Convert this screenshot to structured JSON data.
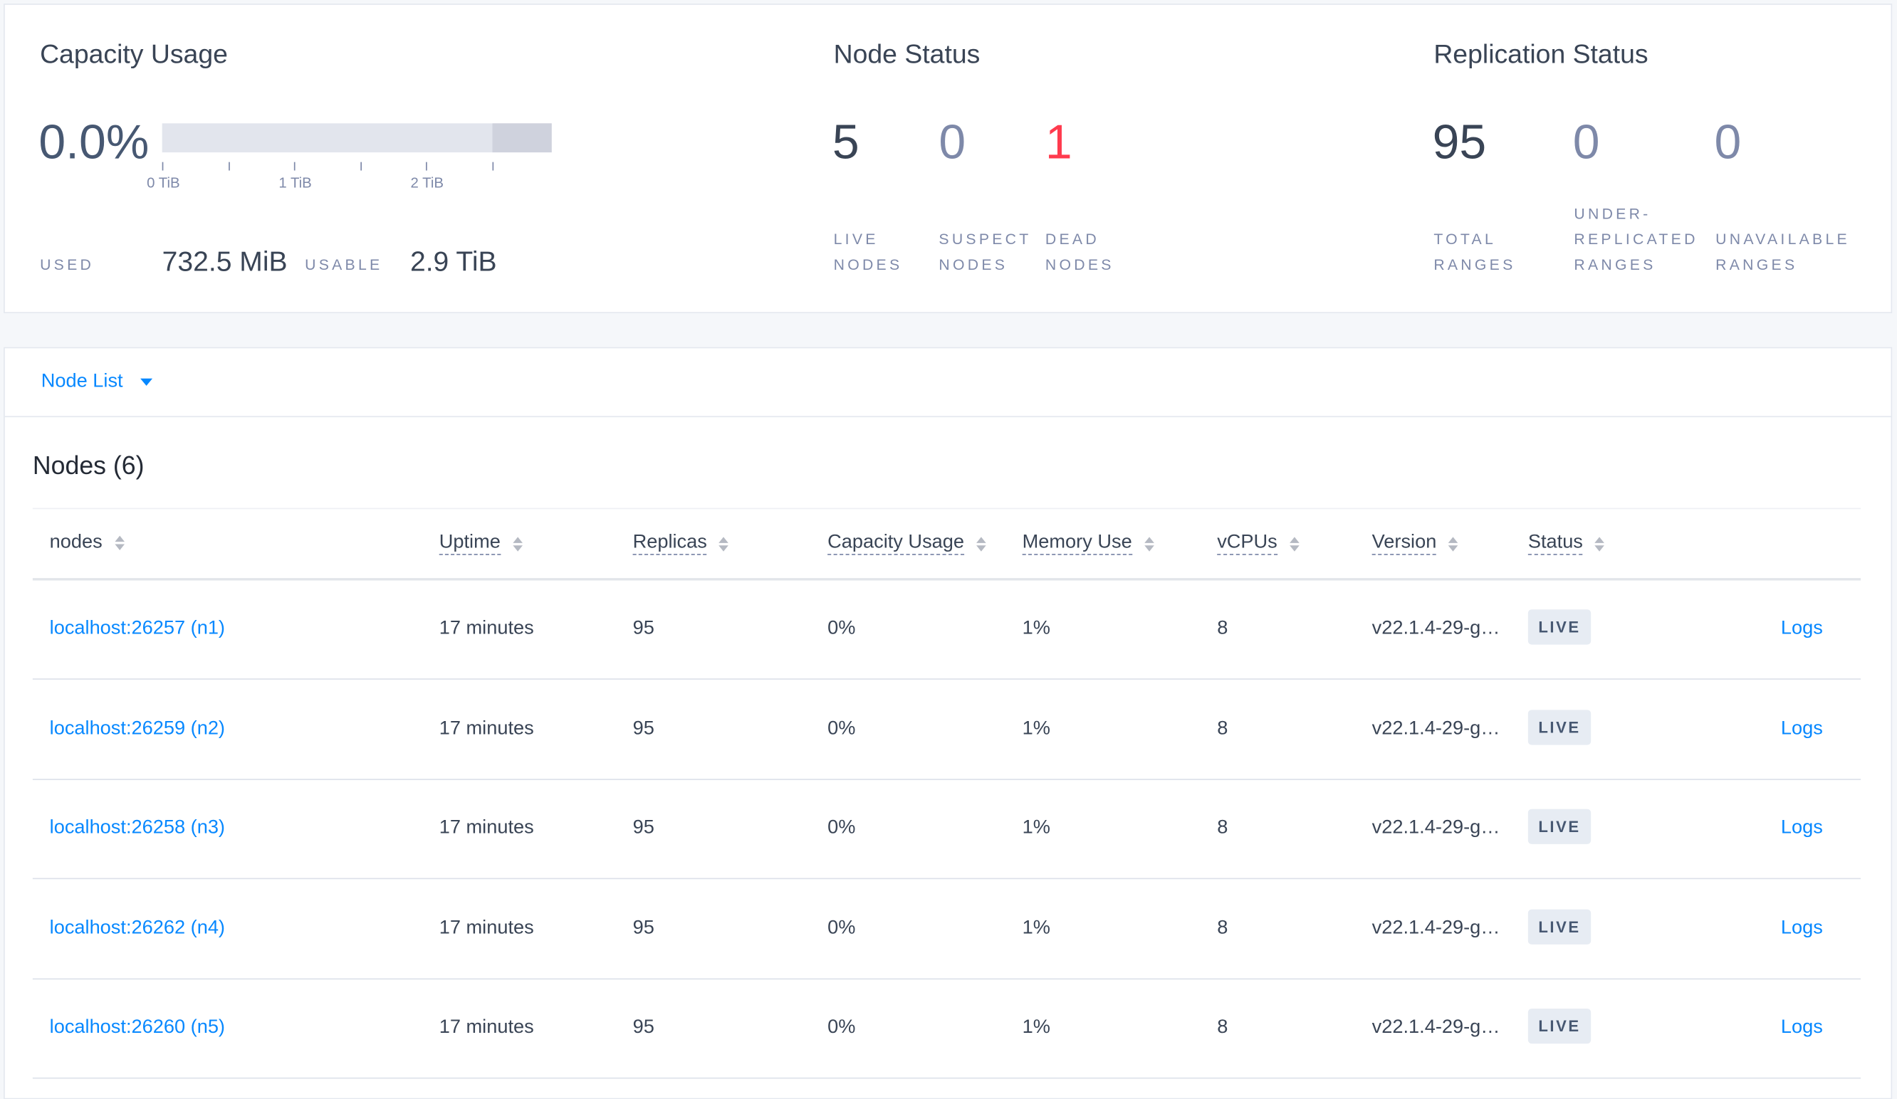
{
  "capacity": {
    "title": "Capacity Usage",
    "percent": "0.0%",
    "used_fraction": 0.0,
    "axis_ticks": [
      "0 TiB",
      "1 TiB",
      "2 TiB"
    ],
    "used_label": "USED",
    "used_value": "732.5 MiB",
    "usable_label": "USABLE",
    "usable_value": "2.9 TiB"
  },
  "node_status": {
    "title": "Node Status",
    "live": "5",
    "live_label_1": "LIVE",
    "live_label_2": "NODES",
    "suspect": "0",
    "suspect_label_1": "SUSPECT",
    "suspect_label_2": "NODES",
    "dead": "1",
    "dead_label_1": "DEAD",
    "dead_label_2": "NODES",
    "dead_color": "#ff3b4e"
  },
  "replication": {
    "title": "Replication Status",
    "total": "95",
    "total_label_1": "TOTAL",
    "total_label_2": "RANGES",
    "under": "0",
    "under_label_1": "UNDER-",
    "under_label_2": "REPLICATED",
    "under_label_3": "RANGES",
    "unavailable": "0",
    "unavailable_label_1": "UNAVAILABLE",
    "unavailable_label_2": "RANGES"
  },
  "view_selector": {
    "label": "Node List"
  },
  "nodes_table": {
    "title": "Nodes (6)",
    "columns": [
      "nodes",
      "Uptime",
      "Replicas",
      "Capacity Usage",
      "Memory Use",
      "vCPUs",
      "Version",
      "Status"
    ],
    "rows": [
      {
        "node": "localhost:26257 (n1)",
        "uptime": "17 minutes",
        "replicas": "95",
        "capacity": "0%",
        "memory": "1%",
        "vcpus": "8",
        "version": "v22.1.4-29-g…",
        "status": "LIVE",
        "logs": "Logs"
      },
      {
        "node": "localhost:26259 (n2)",
        "uptime": "17 minutes",
        "replicas": "95",
        "capacity": "0%",
        "memory": "1%",
        "vcpus": "8",
        "version": "v22.1.4-29-g…",
        "status": "LIVE",
        "logs": "Logs"
      },
      {
        "node": "localhost:26258 (n3)",
        "uptime": "17 minutes",
        "replicas": "95",
        "capacity": "0%",
        "memory": "1%",
        "vcpus": "8",
        "version": "v22.1.4-29-g…",
        "status": "LIVE",
        "logs": "Logs"
      },
      {
        "node": "localhost:26262 (n4)",
        "uptime": "17 minutes",
        "replicas": "95",
        "capacity": "0%",
        "memory": "1%",
        "vcpus": "8",
        "version": "v22.1.4-29-g…",
        "status": "LIVE",
        "logs": "Logs"
      },
      {
        "node": "localhost:26260 (n5)",
        "uptime": "17 minutes",
        "replicas": "95",
        "capacity": "0%",
        "memory": "1%",
        "vcpus": "8",
        "version": "v22.1.4-29-g…",
        "status": "LIVE",
        "logs": "Logs"
      }
    ]
  }
}
